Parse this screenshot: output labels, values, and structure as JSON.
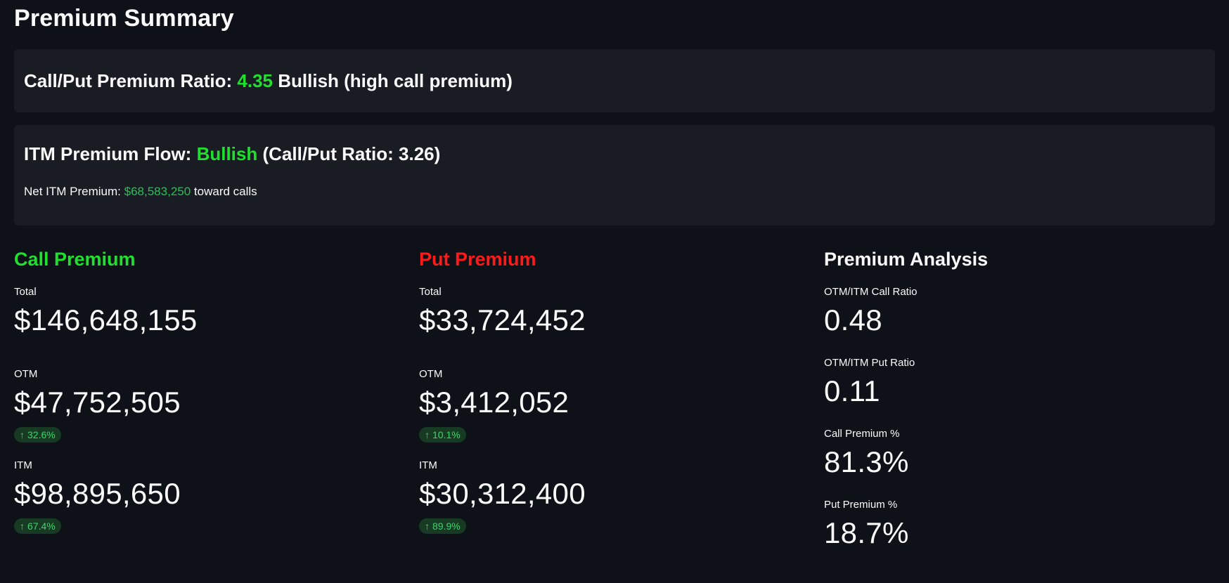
{
  "page": {
    "title": "Premium Summary"
  },
  "ratio_card": {
    "label": "Call/Put Premium Ratio:",
    "value": "4.35",
    "sentiment": "Bullish (high call premium)"
  },
  "itm_card": {
    "label": "ITM Premium Flow:",
    "sentiment": "Bullish",
    "ratio_text": "(Call/Put Ratio: 3.26)",
    "net_label": "Net ITM Premium:",
    "net_value": "$68,583,250",
    "net_suffix": "toward calls"
  },
  "columns": {
    "call": {
      "title": "Call Premium",
      "total_label": "Total",
      "total_value": "$146,648,155",
      "otm_label": "OTM",
      "otm_value": "$47,752,505",
      "otm_delta": "32.6%",
      "itm_label": "ITM",
      "itm_value": "$98,895,650",
      "itm_delta": "67.4%"
    },
    "put": {
      "title": "Put Premium",
      "total_label": "Total",
      "total_value": "$33,724,452",
      "otm_label": "OTM",
      "otm_value": "$3,412,052",
      "otm_delta": "10.1%",
      "itm_label": "ITM",
      "itm_value": "$30,312,400",
      "itm_delta": "89.9%"
    },
    "analysis": {
      "title": "Premium Analysis",
      "metrics": [
        {
          "label": "OTM/ITM Call Ratio",
          "value": "0.48"
        },
        {
          "label": "OTM/ITM Put Ratio",
          "value": "0.11"
        },
        {
          "label": "Call Premium %",
          "value": "81.3%"
        },
        {
          "label": "Put Premium %",
          "value": "18.7%"
        }
      ]
    }
  },
  "icons": {
    "delta_up": "arrow-up-icon"
  },
  "colors": {
    "background": "#0e1117",
    "card": "#1a1c23",
    "bullish_green": "#1fe02f",
    "put_red": "#ff1a1a",
    "delta_bg": "#163b22",
    "delta_text": "#3dd56d"
  }
}
